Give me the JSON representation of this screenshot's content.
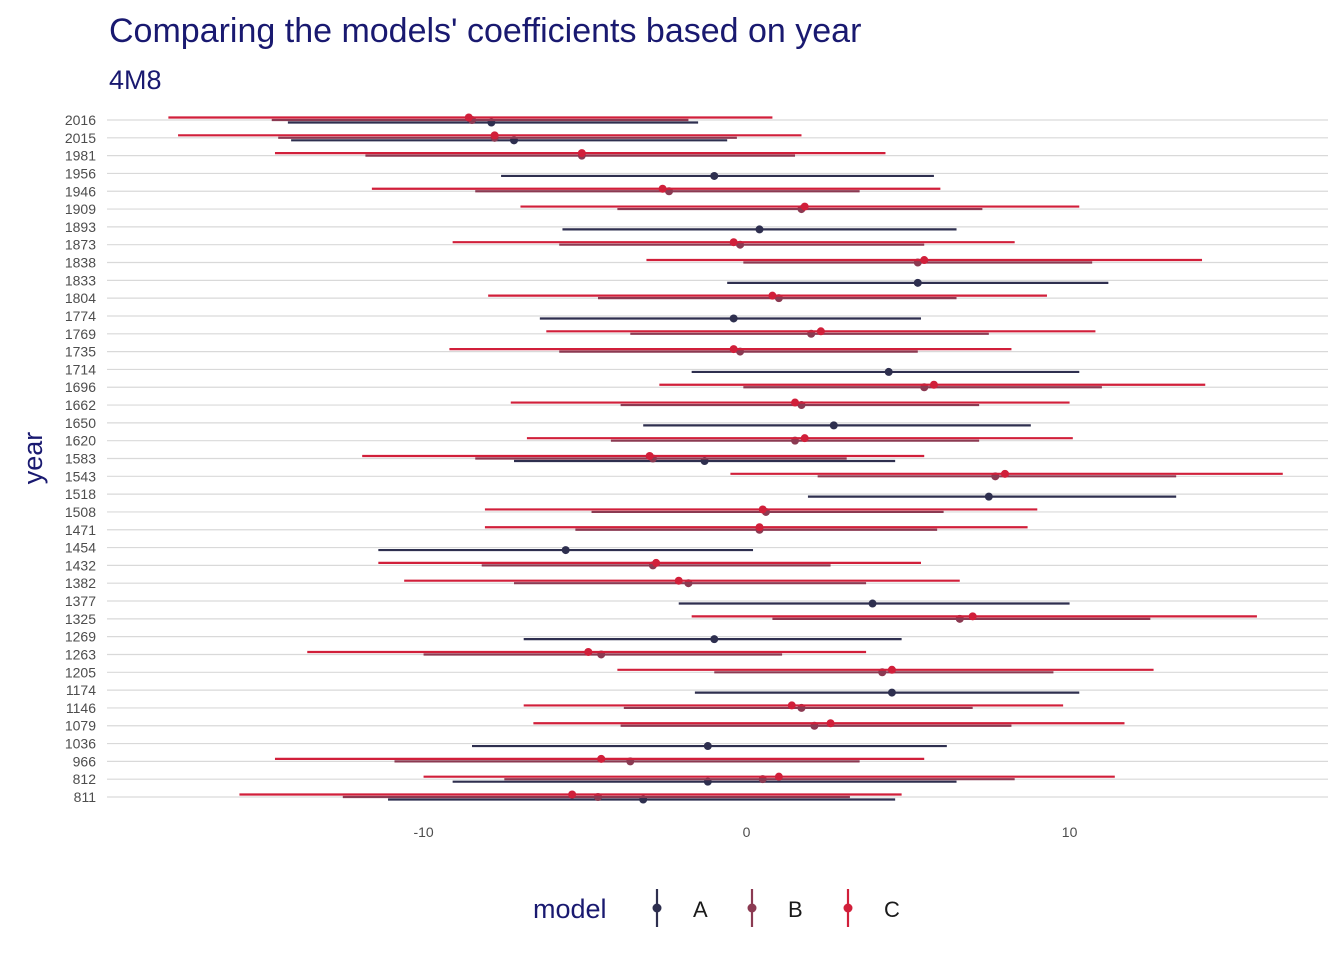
{
  "chart_data": {
    "type": "pointrange",
    "title": "Comparing the models' coefficients based on year",
    "subtitle": "4M8",
    "ylabel": "year",
    "xlim": [
      -19.8,
      18.0
    ],
    "x_ticks": [
      -10,
      0,
      10
    ],
    "grid": "horizontal major",
    "legend": {
      "title": "model",
      "position": "bottom"
    },
    "colors": {
      "A": "#2e2f4f",
      "B": "#8b3a52",
      "C": "#d11f3a",
      "text": "#191970",
      "grid": "#d9d9d9"
    },
    "series": [
      {
        "name": "A",
        "points": [
          {
            "year": "2016",
            "est": -7.9,
            "lo": -14.2,
            "hi": -1.5
          },
          {
            "year": "2015",
            "est": -7.2,
            "lo": -14.1,
            "hi": -0.6
          },
          {
            "year": "1956",
            "est": -1.0,
            "lo": -7.6,
            "hi": 5.8
          },
          {
            "year": "1893",
            "est": 0.4,
            "lo": -5.7,
            "hi": 6.5
          },
          {
            "year": "1833",
            "est": 5.3,
            "lo": -0.6,
            "hi": 11.2
          },
          {
            "year": "1774",
            "est": -0.4,
            "lo": -6.4,
            "hi": 5.4
          },
          {
            "year": "1714",
            "est": 4.4,
            "lo": -1.7,
            "hi": 10.3
          },
          {
            "year": "1650",
            "est": 2.7,
            "lo": -3.2,
            "hi": 8.8
          },
          {
            "year": "1583",
            "est": -1.3,
            "lo": -7.2,
            "hi": 4.6
          },
          {
            "year": "1518",
            "est": 7.5,
            "lo": 1.9,
            "hi": 13.3
          },
          {
            "year": "1454",
            "est": -5.6,
            "lo": -11.4,
            "hi": 0.2
          },
          {
            "year": "1377",
            "est": 3.9,
            "lo": -2.1,
            "hi": 10.0
          },
          {
            "year": "1269",
            "est": -1.0,
            "lo": -6.9,
            "hi": 4.8
          },
          {
            "year": "1174",
            "est": 4.5,
            "lo": -1.6,
            "hi": 10.3
          },
          {
            "year": "1036",
            "est": -1.2,
            "lo": -8.5,
            "hi": 6.2
          },
          {
            "year": "812",
            "est": -1.2,
            "lo": -9.1,
            "hi": 6.5
          },
          {
            "year": "811",
            "est": -3.2,
            "lo": -11.1,
            "hi": 4.6
          }
        ]
      },
      {
        "name": "B",
        "points": [
          {
            "year": "2016",
            "est": -8.5,
            "lo": -14.7,
            "hi": -1.8
          },
          {
            "year": "2015",
            "est": -7.8,
            "lo": -14.5,
            "hi": -0.3
          },
          {
            "year": "1981",
            "est": -5.1,
            "lo": -11.8,
            "hi": 1.5
          },
          {
            "year": "1946",
            "est": -2.4,
            "lo": -8.4,
            "hi": 3.5
          },
          {
            "year": "1909",
            "est": 1.7,
            "lo": -4.0,
            "hi": 7.3
          },
          {
            "year": "1873",
            "est": -0.2,
            "lo": -5.8,
            "hi": 5.5
          },
          {
            "year": "1838",
            "est": 5.3,
            "lo": -0.1,
            "hi": 10.7
          },
          {
            "year": "1804",
            "est": 1.0,
            "lo": -4.6,
            "hi": 6.5
          },
          {
            "year": "1769",
            "est": 2.0,
            "lo": -3.6,
            "hi": 7.5
          },
          {
            "year": "1735",
            "est": -0.2,
            "lo": -5.8,
            "hi": 5.3
          },
          {
            "year": "1696",
            "est": 5.5,
            "lo": -0.1,
            "hi": 11.0
          },
          {
            "year": "1662",
            "est": 1.7,
            "lo": -3.9,
            "hi": 7.2
          },
          {
            "year": "1620",
            "est": 1.5,
            "lo": -4.2,
            "hi": 7.2
          },
          {
            "year": "1583",
            "est": -2.9,
            "lo": -8.4,
            "hi": 3.1
          },
          {
            "year": "1543",
            "est": 7.7,
            "lo": 2.2,
            "hi": 13.3
          },
          {
            "year": "1508",
            "est": 0.6,
            "lo": -4.8,
            "hi": 6.1
          },
          {
            "year": "1471",
            "est": 0.4,
            "lo": -5.3,
            "hi": 5.9
          },
          {
            "year": "1432",
            "est": -2.9,
            "lo": -8.2,
            "hi": 2.6
          },
          {
            "year": "1382",
            "est": -1.8,
            "lo": -7.2,
            "hi": 3.7
          },
          {
            "year": "1325",
            "est": 6.6,
            "lo": 0.8,
            "hi": 12.5
          },
          {
            "year": "1263",
            "est": -4.5,
            "lo": -10.0,
            "hi": 1.1
          },
          {
            "year": "1205",
            "est": 4.2,
            "lo": -1.0,
            "hi": 9.5
          },
          {
            "year": "1146",
            "est": 1.7,
            "lo": -3.8,
            "hi": 7.0
          },
          {
            "year": "1079",
            "est": 2.1,
            "lo": -3.9,
            "hi": 8.2
          },
          {
            "year": "966",
            "est": -3.6,
            "lo": -10.9,
            "hi": 3.5
          },
          {
            "year": "812",
            "est": 0.5,
            "lo": -7.5,
            "hi": 8.3
          },
          {
            "year": "811",
            "est": -4.6,
            "lo": -12.5,
            "hi": 3.2
          }
        ]
      },
      {
        "name": "C",
        "points": [
          {
            "year": "2016",
            "est": -8.6,
            "lo": -17.9,
            "hi": 0.8
          },
          {
            "year": "2015",
            "est": -7.8,
            "lo": -17.6,
            "hi": 1.7
          },
          {
            "year": "1981",
            "est": -5.1,
            "lo": -14.6,
            "hi": 4.3
          },
          {
            "year": "1946",
            "est": -2.6,
            "lo": -11.6,
            "hi": 6.0
          },
          {
            "year": "1909",
            "est": 1.8,
            "lo": -7.0,
            "hi": 10.3
          },
          {
            "year": "1873",
            "est": -0.4,
            "lo": -9.1,
            "hi": 8.3
          },
          {
            "year": "1838",
            "est": 5.5,
            "lo": -3.1,
            "hi": 14.1
          },
          {
            "year": "1804",
            "est": 0.8,
            "lo": -8.0,
            "hi": 9.3
          },
          {
            "year": "1769",
            "est": 2.3,
            "lo": -6.2,
            "hi": 10.8
          },
          {
            "year": "1735",
            "est": -0.4,
            "lo": -9.2,
            "hi": 8.2
          },
          {
            "year": "1696",
            "est": 5.8,
            "lo": -2.7,
            "hi": 14.2
          },
          {
            "year": "1662",
            "est": 1.5,
            "lo": -7.3,
            "hi": 10.0
          },
          {
            "year": "1620",
            "est": 1.8,
            "lo": -6.8,
            "hi": 10.1
          },
          {
            "year": "1583",
            "est": -3.0,
            "lo": -11.9,
            "hi": 5.5
          },
          {
            "year": "1543",
            "est": 8.0,
            "lo": -0.5,
            "hi": 16.6
          },
          {
            "year": "1508",
            "est": 0.5,
            "lo": -8.1,
            "hi": 9.0
          },
          {
            "year": "1471",
            "est": 0.4,
            "lo": -8.1,
            "hi": 8.7
          },
          {
            "year": "1432",
            "est": -2.8,
            "lo": -11.4,
            "hi": 5.4
          },
          {
            "year": "1382",
            "est": -2.1,
            "lo": -10.6,
            "hi": 6.6
          },
          {
            "year": "1325",
            "est": 7.0,
            "lo": -1.7,
            "hi": 15.8
          },
          {
            "year": "1263",
            "est": -4.9,
            "lo": -13.6,
            "hi": 3.7
          },
          {
            "year": "1205",
            "est": 4.5,
            "lo": -4.0,
            "hi": 12.6
          },
          {
            "year": "1146",
            "est": 1.4,
            "lo": -6.9,
            "hi": 9.8
          },
          {
            "year": "1079",
            "est": 2.6,
            "lo": -6.6,
            "hi": 11.7
          },
          {
            "year": "966",
            "est": -4.5,
            "lo": -14.6,
            "hi": 5.5
          },
          {
            "year": "812",
            "est": 1.0,
            "lo": -10.0,
            "hi": 11.4
          },
          {
            "year": "811",
            "est": -5.4,
            "lo": -15.7,
            "hi": 4.8
          }
        ]
      }
    ],
    "years": [
      "2016",
      "2015",
      "1981",
      "1956",
      "1946",
      "1909",
      "1893",
      "1873",
      "1838",
      "1833",
      "1804",
      "1774",
      "1769",
      "1735",
      "1714",
      "1696",
      "1662",
      "1650",
      "1620",
      "1583",
      "1543",
      "1518",
      "1508",
      "1471",
      "1454",
      "1432",
      "1382",
      "1377",
      "1325",
      "1269",
      "1263",
      "1205",
      "1174",
      "1146",
      "1079",
      "1036",
      "966",
      "812",
      "811"
    ]
  }
}
